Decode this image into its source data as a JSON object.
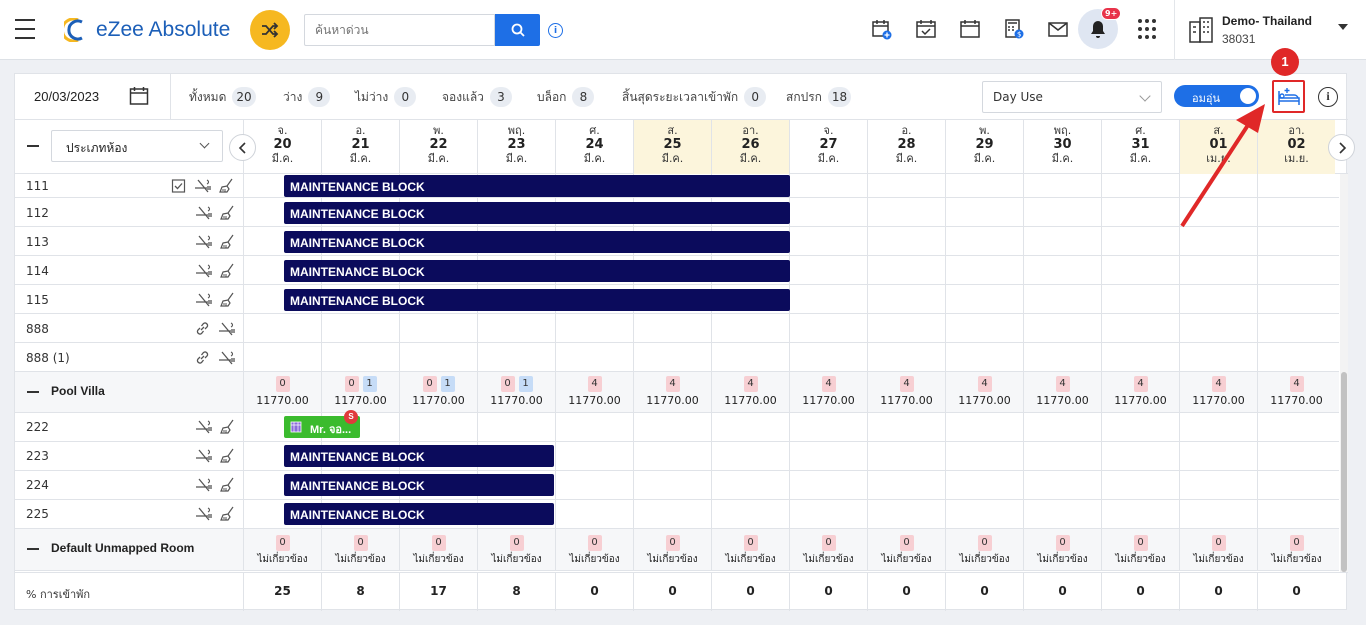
{
  "app": {
    "name": "eZee Absolute",
    "search_placeholder": "ค้นหาด่วน",
    "notif_badge": "9+",
    "property": "Demo- Thailand",
    "property_id": "38031"
  },
  "filter": {
    "date": "20/03/2023",
    "stats": [
      {
        "label": "ทั้งหมด",
        "count": "20"
      },
      {
        "label": "ว่าง",
        "count": "9"
      },
      {
        "label": "ไม่ว่าง",
        "count": "0"
      },
      {
        "label": "จองแล้ว",
        "count": "3"
      },
      {
        "label": "บล็อก",
        "count": "8"
      },
      {
        "label": "สิ้นสุดระยะเวลาเข้าพัก",
        "count": "0"
      },
      {
        "label": "สกปรก",
        "count": "18"
      }
    ],
    "day_use": "Day Use",
    "toggle_label": "อมอุ่น"
  },
  "room_type_select": "ประเภทห้อง",
  "days": [
    {
      "dow": "จ.",
      "d": "20",
      "m": "มี.ค.",
      "we": false
    },
    {
      "dow": "อ.",
      "d": "21",
      "m": "มี.ค.",
      "we": false
    },
    {
      "dow": "พ.",
      "d": "22",
      "m": "มี.ค.",
      "we": false
    },
    {
      "dow": "พฤ.",
      "d": "23",
      "m": "มี.ค.",
      "we": false
    },
    {
      "dow": "ศ.",
      "d": "24",
      "m": "มี.ค.",
      "we": false
    },
    {
      "dow": "ส.",
      "d": "25",
      "m": "มี.ค.",
      "we": true
    },
    {
      "dow": "อา.",
      "d": "26",
      "m": "มี.ค.",
      "we": true
    },
    {
      "dow": "จ.",
      "d": "27",
      "m": "มี.ค.",
      "we": false
    },
    {
      "dow": "อ.",
      "d": "28",
      "m": "มี.ค.",
      "we": false
    },
    {
      "dow": "พ.",
      "d": "29",
      "m": "มี.ค.",
      "we": false
    },
    {
      "dow": "พฤ.",
      "d": "30",
      "m": "มี.ค.",
      "we": false
    },
    {
      "dow": "ศ.",
      "d": "31",
      "m": "มี.ค.",
      "we": false
    },
    {
      "dow": "ส.",
      "d": "01",
      "m": "เม.ย.",
      "we": true
    },
    {
      "dow": "อา.",
      "d": "02",
      "m": "เม.ย.",
      "we": true
    }
  ],
  "block_label": "MAINTENANCE BLOCK",
  "rooms_top": [
    {
      "name": "111",
      "icons": 3,
      "block": true
    },
    {
      "name": "112",
      "icons": 2,
      "block": true
    },
    {
      "name": "113",
      "icons": 2,
      "block": true
    },
    {
      "name": "114",
      "icons": 2,
      "block": true
    },
    {
      "name": "115",
      "icons": 2,
      "block": true
    },
    {
      "name": "888",
      "icons": 2,
      "block": false
    },
    {
      "name": "888 (1)",
      "icons": 2,
      "block": false
    }
  ],
  "pool_villa": {
    "name": "Pool Villa",
    "avail": [
      "0",
      "0",
      "0",
      "0",
      "4",
      "4",
      "4",
      "4",
      "4",
      "4",
      "4",
      "4",
      "4",
      "4"
    ],
    "booked": [
      "",
      "1",
      "1",
      "1",
      "",
      "",
      "",
      "",
      "",
      "",
      "",
      "",
      "",
      ""
    ],
    "rate": "11770.00",
    "rooms": [
      {
        "name": "222",
        "resv": "Mr. จอ...",
        "resv_badge": "S"
      },
      {
        "name": "223",
        "block": true
      },
      {
        "name": "224",
        "block": true
      },
      {
        "name": "225",
        "block": true
      }
    ]
  },
  "unmapped": {
    "name": "Default Unmapped Room",
    "count": "0",
    "label": "ไม่เกี่ยวข้อง"
  },
  "occupancy": {
    "label": "% การเข้าพัก",
    "values": [
      "25",
      "8",
      "17",
      "8",
      "0",
      "0",
      "0",
      "0",
      "0",
      "0",
      "0",
      "0",
      "0",
      "0"
    ]
  },
  "callout_number": "1",
  "colors": {
    "primary": "#1e6fe6",
    "block": "#0b0b5c",
    "reservation": "#3bbb2e",
    "weekend": "#fcf5dc",
    "callout": "#e02828"
  }
}
